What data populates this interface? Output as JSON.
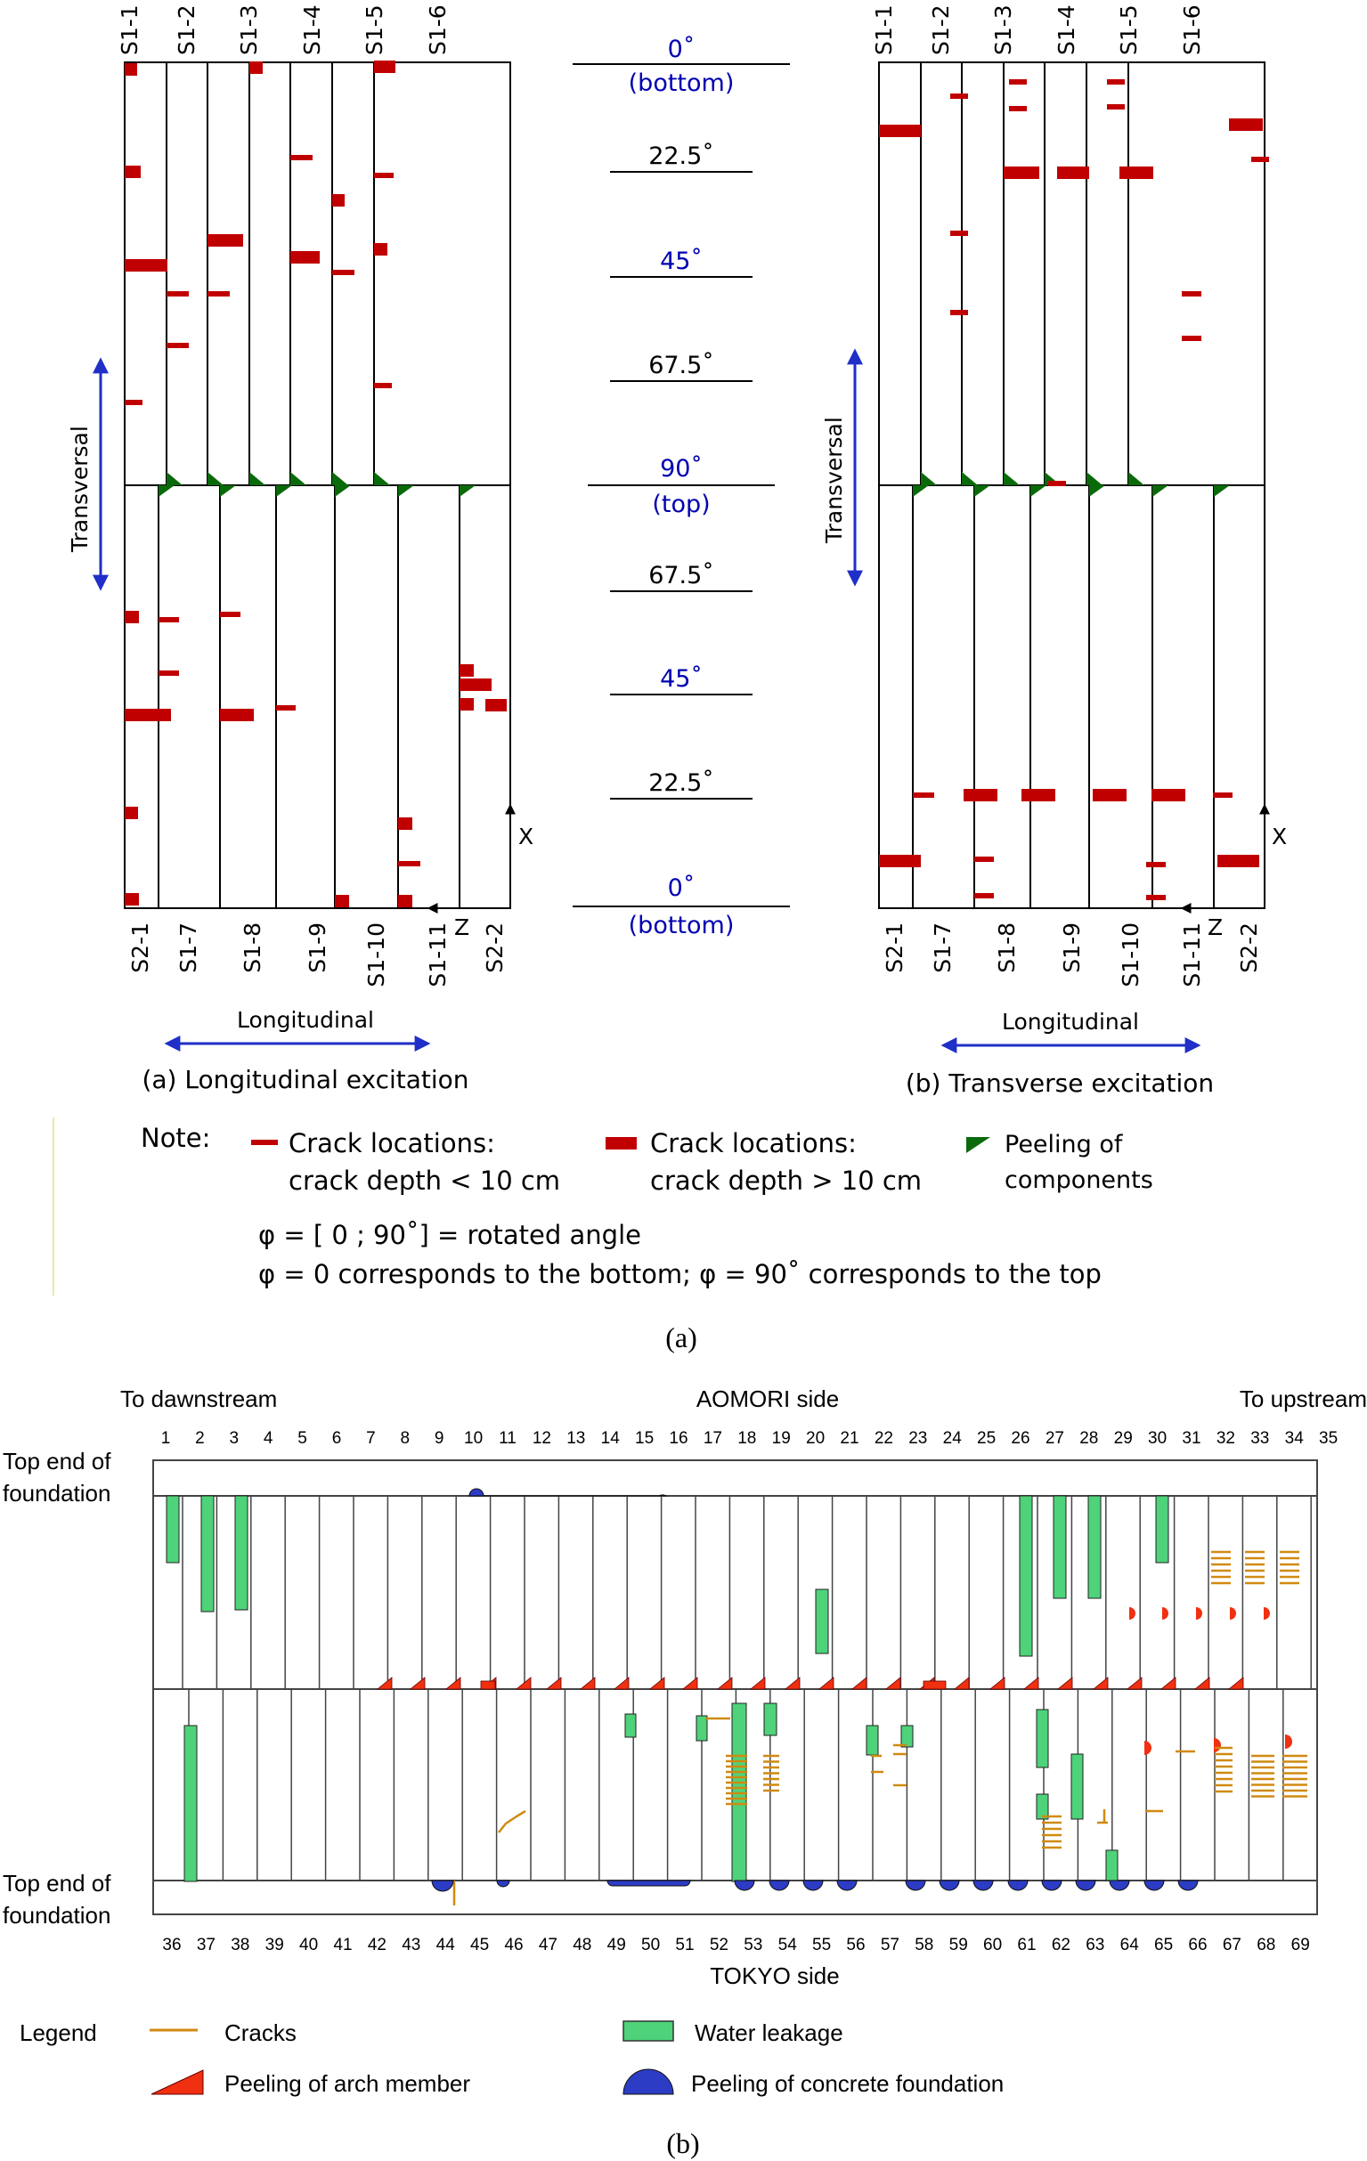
{
  "part_a": {
    "panel_a": {
      "top_labels": [
        "S1-1",
        "S1-2",
        "S1-3",
        "S1-4",
        "S1-5",
        "S1-6"
      ],
      "bottom_labels": [
        "S2-1",
        "S1-7",
        "S1-8",
        "S1-9",
        "S1-10",
        "S1-11",
        "S2-2"
      ],
      "caption": "(a) Longitudinal excitation",
      "transversal": "Transversal",
      "longitudinal": "Longitudinal",
      "axis_x": "X",
      "axis_z": "Z"
    },
    "panel_b": {
      "top_labels": [
        "S1-1",
        "S1-2",
        "S1-3",
        "S1-4",
        "S1-5",
        "S1-6"
      ],
      "bottom_labels": [
        "S2-1",
        "S1-7",
        "S1-8",
        "S1-9",
        "S1-10",
        "S1-11",
        "S2-2"
      ],
      "caption": "(b) Transverse excitation",
      "transversal": "Transversal",
      "longitudinal": "Longitudinal",
      "axis_x": "X",
      "axis_z": "Z"
    },
    "angle_scale": [
      {
        "text": "0˚",
        "sub": "(bottom)",
        "blue": true
      },
      {
        "text": "22.5˚",
        "sub": "",
        "blue": false
      },
      {
        "text": "45˚",
        "sub": "",
        "blue": true
      },
      {
        "text": "67.5˚",
        "sub": "",
        "blue": false
      },
      {
        "text": "90˚",
        "sub": "(top)",
        "blue": true
      },
      {
        "text": "67.5˚",
        "sub": "",
        "blue": false
      },
      {
        "text": "45˚",
        "sub": "",
        "blue": true
      },
      {
        "text": "22.5˚",
        "sub": "",
        "blue": false
      },
      {
        "text": "0˚",
        "sub": "(bottom)",
        "blue": true
      }
    ],
    "note": {
      "title": "Note:",
      "thin_crack_l1": "Crack locations:",
      "thin_crack_l2": "crack depth < 10 cm",
      "thick_crack_l1": "Crack locations:",
      "thick_crack_l2": "crack depth > 10 cm",
      "peel_l1": "Peeling of",
      "peel_l2": "components",
      "line1": "φ = [ 0 ; 90˚] = rotated angle",
      "line2": "φ = 0 corresponds to the bottom;  φ = 90˚ corresponds to the top"
    },
    "caption": "(a)"
  },
  "part_b": {
    "to_downstream": "To dawnstream",
    "aomori": "AOMORI side",
    "to_upstream": "To upstream",
    "top_numbers": [
      "1",
      "2",
      "3",
      "4",
      "5",
      "6",
      "7",
      "8",
      "9",
      "10",
      "11",
      "12",
      "13",
      "14",
      "15",
      "16",
      "17",
      "18",
      "19",
      "20",
      "21",
      "22",
      "23",
      "24",
      "25",
      "26",
      "27",
      "28",
      "29",
      "30",
      "31",
      "32",
      "33",
      "34",
      "35"
    ],
    "bottom_numbers": [
      "36",
      "37",
      "38",
      "39",
      "40",
      "41",
      "42",
      "43",
      "44",
      "45",
      "46",
      "47",
      "48",
      "49",
      "50",
      "51",
      "52",
      "53",
      "54",
      "55",
      "56",
      "57",
      "58",
      "59",
      "60",
      "61",
      "62",
      "63",
      "64",
      "65",
      "66",
      "67",
      "68",
      "69"
    ],
    "top_end_1a": "Top end of",
    "top_end_1b": "foundation",
    "top_end_2a": "Top end of",
    "top_end_2b": "foundation",
    "tokyo": "TOKYO side",
    "legend": {
      "title": "Legend",
      "cracks": "Cracks",
      "water": "Water leakage",
      "peel_arch": "Peeling of arch member",
      "peel_found": "Peeling of concrete foundation"
    },
    "caption": "(b)"
  },
  "colors": {
    "crack_red": "#c00000",
    "peel_green": "#0a6a0a",
    "arrow_blue": "#1f2fc8",
    "water_green": "#4ed27a",
    "crack_orange": "#d08a10",
    "peel_arch_red": "#f03010",
    "found_blue": "#2c3cc4"
  }
}
